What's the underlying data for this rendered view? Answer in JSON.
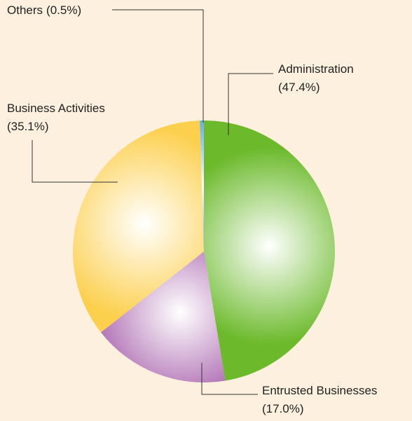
{
  "chart_data": {
    "type": "pie",
    "categories": [
      "Administration",
      "Entrusted Businesses",
      "Business Activities",
      "Others"
    ],
    "values": [
      47.4,
      17.0,
      35.1,
      0.5
    ],
    "value_labels": [
      "(47.4%)",
      "(17.0%)",
      "(35.1%)",
      "(0.5%)"
    ],
    "colors": [
      "#6cba2c",
      "#a45aa9",
      "#fccf4c",
      "#1689c7"
    ]
  }
}
